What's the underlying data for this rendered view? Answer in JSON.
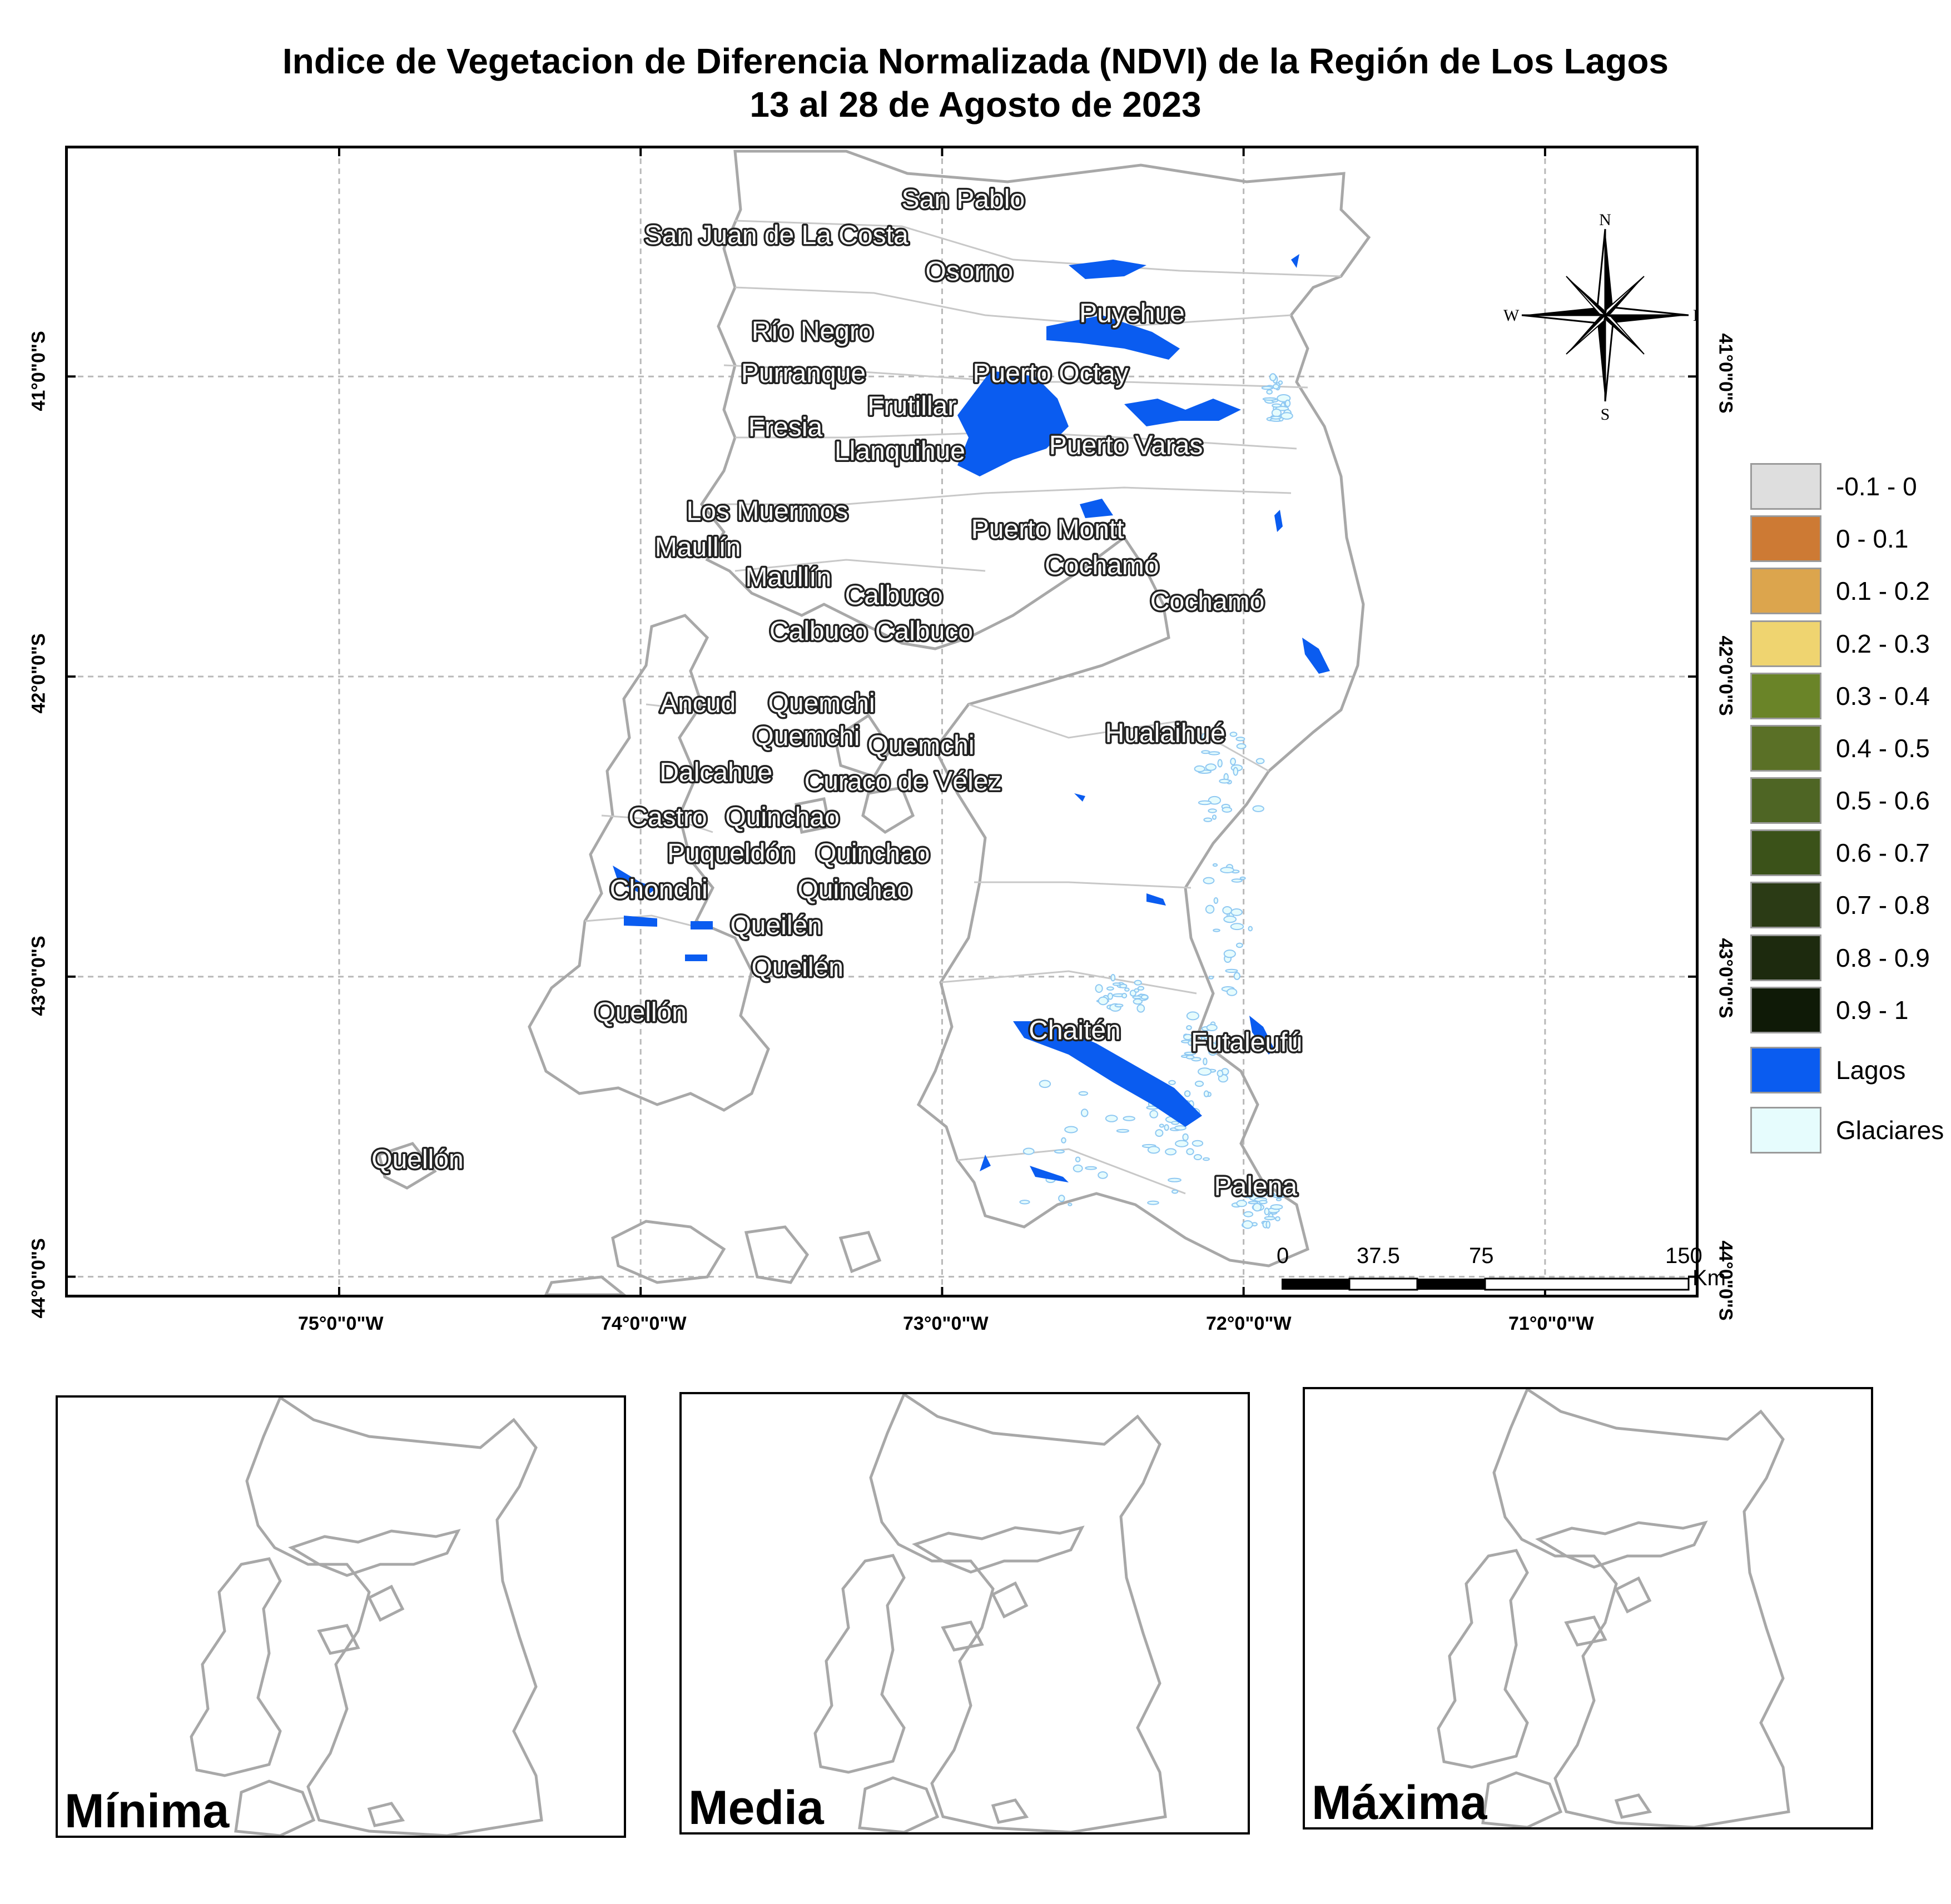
{
  "title": {
    "line1": "Indice de Vegetacion de Diferencia Normalizada (NDVI) de la Región de Los Lagos",
    "line2": "13 al 28 de Agosto de 2023"
  },
  "axes": {
    "lon_labels": [
      "75°0\"0\"W",
      "74°0\"0\"W",
      "73°0\"0\"W",
      "72°0\"0\"W",
      "71°0\"0\"W"
    ],
    "lat_labels": [
      "41°0\"0\"S",
      "42°0\"0\"S",
      "43°0\"0\"S",
      "44°0\"0\"S"
    ],
    "lon_values": [
      -75,
      -74,
      -73,
      -72,
      -71
    ],
    "lat_values": [
      -41,
      -42,
      -43,
      -44
    ],
    "lon_range": [
      -75.9,
      -70.5
    ],
    "lat_range": [
      -40.24,
      -44.06
    ],
    "grid": true
  },
  "places": [
    {
      "name": "San Pablo",
      "lon": -72.93,
      "lat": -40.41
    },
    {
      "name": "San Juan de La Costa",
      "lon": -73.55,
      "lat": -40.53
    },
    {
      "name": "Osorno",
      "lon": -72.91,
      "lat": -40.65
    },
    {
      "name": "Puyehue",
      "lon": -72.37,
      "lat": -40.79
    },
    {
      "name": "Río Negro",
      "lon": -73.43,
      "lat": -40.85
    },
    {
      "name": "Purranque",
      "lon": -73.46,
      "lat": -40.99
    },
    {
      "name": "Puerto Octay",
      "lon": -72.64,
      "lat": -40.99
    },
    {
      "name": "Frutillar",
      "lon": -73.1,
      "lat": -41.1
    },
    {
      "name": "Fresia",
      "lon": -73.52,
      "lat": -41.17
    },
    {
      "name": "Llanquihue",
      "lon": -73.14,
      "lat": -41.25
    },
    {
      "name": "Puerto Varas",
      "lon": -72.39,
      "lat": -41.23
    },
    {
      "name": "Los Muermos",
      "lon": -73.58,
      "lat": -41.45
    },
    {
      "name": "Maullín",
      "lon": -73.81,
      "lat": -41.57
    },
    {
      "name": "Puerto Montt",
      "lon": -72.65,
      "lat": -41.51
    },
    {
      "name": "Cochamó",
      "lon": -72.47,
      "lat": -41.63
    },
    {
      "name": "Maullín",
      "lon": -73.51,
      "lat": -41.67
    },
    {
      "name": "Calbuco",
      "lon": -73.16,
      "lat": -41.73
    },
    {
      "name": "Cochamó",
      "lon": -72.12,
      "lat": -41.75
    },
    {
      "name": "Calbuco",
      "lon": -73.41,
      "lat": -41.85
    },
    {
      "name": "Calbuco",
      "lon": -73.06,
      "lat": -41.85
    },
    {
      "name": "Ancud",
      "lon": -73.81,
      "lat": -42.09
    },
    {
      "name": "Quemchi",
      "lon": -73.4,
      "lat": -42.09
    },
    {
      "name": "Hualaihué",
      "lon": -72.26,
      "lat": -42.19
    },
    {
      "name": "Quemchi",
      "lon": -73.45,
      "lat": -42.2
    },
    {
      "name": "Quemchi",
      "lon": -73.07,
      "lat": -42.23
    },
    {
      "name": "Dalcahue",
      "lon": -73.75,
      "lat": -42.32
    },
    {
      "name": "Curaco de Vélez",
      "lon": -73.13,
      "lat": -42.35
    },
    {
      "name": "Castro",
      "lon": -73.91,
      "lat": -42.47
    },
    {
      "name": "Quinchao",
      "lon": -73.53,
      "lat": -42.47
    },
    {
      "name": "Puqueldón",
      "lon": -73.7,
      "lat": -42.59
    },
    {
      "name": "Quinchao",
      "lon": -73.23,
      "lat": -42.59
    },
    {
      "name": "Chonchi",
      "lon": -73.94,
      "lat": -42.71
    },
    {
      "name": "Quinchao",
      "lon": -73.29,
      "lat": -42.71
    },
    {
      "name": "Queilén",
      "lon": -73.55,
      "lat": -42.83
    },
    {
      "name": "Queilén",
      "lon": -73.48,
      "lat": -42.97
    },
    {
      "name": "Quellón",
      "lon": -74.0,
      "lat": -43.12
    },
    {
      "name": "Chaitén",
      "lon": -72.56,
      "lat": -43.18
    },
    {
      "name": "Futaleufú",
      "lon": -71.99,
      "lat": -43.22
    },
    {
      "name": "Quellón",
      "lon": -74.74,
      "lat": -43.61
    },
    {
      "name": "Palena",
      "lon": -71.96,
      "lat": -43.7
    }
  ],
  "legend": [
    {
      "label": "-0.1 - 0",
      "color": "#dedede"
    },
    {
      "label": "0 - 0.1",
      "color": "#cd7a34"
    },
    {
      "label": "0.1 - 0.2",
      "color": "#dca54d"
    },
    {
      "label": "0.2 - 0.3",
      "color": "#efd470"
    },
    {
      "label": "0.3 - 0.4",
      "color": "#6a8428"
    },
    {
      "label": "0.4 - 0.5",
      "color": "#5a7026"
    },
    {
      "label": "0.5 - 0.6",
      "color": "#4e6524"
    },
    {
      "label": "0.6 - 0.7",
      "color": "#3b5219"
    },
    {
      "label": "0.7 - 0.8",
      "color": "#2b3b15"
    },
    {
      "label": "0.8 - 0.9",
      "color": "#1d2a0e"
    },
    {
      "label": "0.9 - 1",
      "color": "#0f1a07"
    },
    {
      "label": "Lagos",
      "color": "#0a5cf0"
    },
    {
      "label": "Glaciares",
      "color": "#e6fcfd"
    }
  ],
  "north_arrow": {
    "n": "N",
    "s": "S",
    "e": "E",
    "w": "W"
  },
  "scalebar": {
    "labels": [
      "0",
      "37.5",
      "75",
      "150"
    ],
    "unit": "Km"
  },
  "insets": [
    {
      "label": "Mínima"
    },
    {
      "label": "Media"
    },
    {
      "label": "Máxima"
    }
  ],
  "colors": {
    "outline": "#a8a8a8",
    "lake": "#0a5cf0",
    "glacier": "#8fc8f2",
    "grid": "#b8b8b8"
  }
}
